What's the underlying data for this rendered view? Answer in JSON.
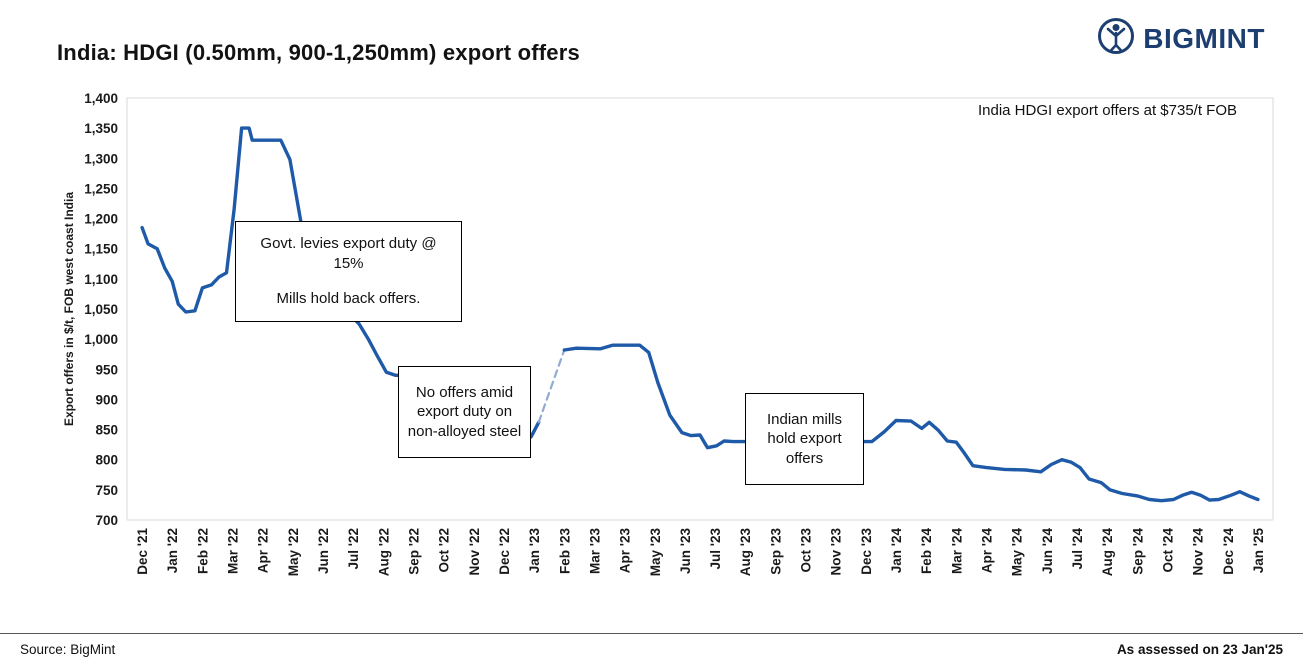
{
  "header": {
    "title": "India: HDGI (0.50mm, 900-1,250mm) export offers",
    "brand": "BIGMINT"
  },
  "footer": {
    "source": "Source: BigMint",
    "assessed": "As assessed on 23 Jan'25"
  },
  "chart_data": {
    "type": "line",
    "title": "India: HDGI (0.50mm, 900-1,250mm) export offers",
    "ylabel": "Export offers in $/t, FOB west coast India",
    "ylim": [
      700,
      1400
    ],
    "ytick_step": 50,
    "grid": "off",
    "line_color": "#1f5aa8",
    "dash_color": "#92abd2",
    "x_categories": [
      "Dec '21",
      "Jan '22",
      "Feb '22",
      "Mar '22",
      "Apr '22",
      "May '22",
      "Jun '22",
      "Jul '22",
      "Aug '22",
      "Sep '22",
      "Oct '22",
      "Nov '22",
      "Dec '22",
      "Jan '23",
      "Feb '23",
      "Mar '23",
      "Apr '23",
      "May '23",
      "Jun '23",
      "Jul '23",
      "Aug '23",
      "Sep '23",
      "Oct '23",
      "Nov '23",
      "Dec '23",
      "Jan '24",
      "Feb '24",
      "Mar '24",
      "Apr '24",
      "May '24",
      "Jun '24",
      "Jul '24",
      "Aug '24",
      "Sep '24",
      "Oct '24",
      "Nov '24",
      "Dec '24",
      "Jan '25"
    ],
    "segments": [
      {
        "style": "solid",
        "points": [
          [
            0,
            1185
          ],
          [
            0.2,
            1158
          ],
          [
            0.5,
            1150
          ],
          [
            0.75,
            1118
          ],
          [
            1.0,
            1096
          ],
          [
            1.2,
            1058
          ],
          [
            1.45,
            1045
          ],
          [
            1.75,
            1047
          ],
          [
            2.0,
            1085
          ],
          [
            2.3,
            1090
          ],
          [
            2.55,
            1103
          ],
          [
            2.8,
            1110
          ],
          [
            3.05,
            1215
          ],
          [
            3.3,
            1350
          ],
          [
            3.55,
            1350
          ],
          [
            3.65,
            1330
          ],
          [
            4.6,
            1330
          ],
          [
            4.9,
            1298
          ],
          [
            5.3,
            1185
          ],
          [
            5.8,
            1125
          ],
          [
            6.4,
            1085
          ],
          [
            6.9,
            1040
          ],
          [
            7.2,
            1025
          ],
          [
            7.5,
            1000
          ],
          [
            7.8,
            972
          ],
          [
            8.1,
            945
          ],
          [
            8.4,
            940
          ],
          [
            9.5,
            940
          ]
        ]
      },
      {
        "style": "solid",
        "points": [
          [
            12.9,
            838
          ],
          [
            13.15,
            862
          ]
        ]
      },
      {
        "style": "dashed",
        "points": [
          [
            13.15,
            862
          ],
          [
            14.0,
            982
          ]
        ]
      },
      {
        "style": "solid",
        "points": [
          [
            14.0,
            982
          ],
          [
            14.4,
            985
          ],
          [
            15.2,
            984
          ],
          [
            15.6,
            990
          ],
          [
            16.5,
            990
          ],
          [
            16.8,
            978
          ],
          [
            17.1,
            928
          ],
          [
            17.5,
            874
          ],
          [
            17.9,
            845
          ],
          [
            18.2,
            840
          ],
          [
            18.5,
            841
          ],
          [
            18.75,
            820
          ],
          [
            19.05,
            823
          ],
          [
            19.3,
            831
          ],
          [
            19.6,
            830
          ],
          [
            24.2,
            830
          ],
          [
            24.6,
            846
          ],
          [
            25.0,
            865
          ],
          [
            25.5,
            864
          ],
          [
            25.85,
            852
          ],
          [
            26.1,
            862
          ],
          [
            26.4,
            849
          ],
          [
            26.7,
            831
          ],
          [
            27.0,
            829
          ],
          [
            27.25,
            812
          ],
          [
            27.55,
            790
          ],
          [
            28.0,
            787
          ],
          [
            28.6,
            784
          ],
          [
            29.3,
            783
          ],
          [
            29.8,
            780
          ],
          [
            30.15,
            792
          ],
          [
            30.5,
            800
          ],
          [
            30.8,
            796
          ],
          [
            31.1,
            787
          ],
          [
            31.4,
            768
          ],
          [
            31.8,
            762
          ],
          [
            32.1,
            750
          ],
          [
            32.5,
            744
          ],
          [
            33.0,
            740
          ],
          [
            33.4,
            734
          ],
          [
            33.8,
            732
          ],
          [
            34.2,
            734
          ],
          [
            34.5,
            741
          ],
          [
            34.8,
            746
          ],
          [
            35.1,
            741
          ],
          [
            35.4,
            733
          ],
          [
            35.7,
            734
          ],
          [
            36.1,
            741
          ],
          [
            36.4,
            747
          ],
          [
            36.7,
            740
          ],
          [
            37.0,
            734
          ]
        ]
      }
    ],
    "annotations": {
      "callout": "India HDGI export offers at $735/t FOB",
      "box1_para1": "Govt. levies export duty @ 15%",
      "box1_para2": "Mills hold back offers.",
      "box2": "No offers amid export duty on non-alloyed steel",
      "box3": "Indian mills hold export offers"
    }
  }
}
